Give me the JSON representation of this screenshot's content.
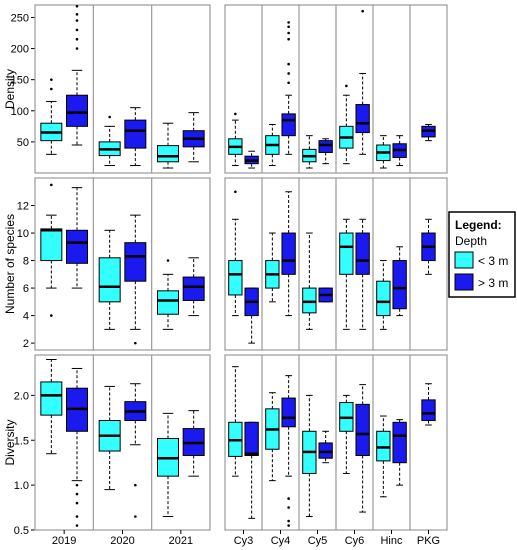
{
  "legend": {
    "title": "Legend:",
    "subtitle": "Depth",
    "items": [
      "< 3 m",
      "> 3 m"
    ]
  },
  "colors": {
    "shallow": "#33ffff",
    "deep": "#1a1aee",
    "frame": "#999999",
    "grid": "#bfbfbf"
  },
  "chart_data": [
    {
      "type": "box",
      "ylabel": "Density",
      "ylim": [
        0,
        270
      ],
      "yticks": [
        50,
        100,
        150,
        200,
        250
      ],
      "left": {
        "groups": [
          "2019",
          "2020",
          "2021"
        ],
        "boxes": [
          {
            "group": "2019",
            "depth": "< 3 m",
            "q1": 52,
            "median": 65,
            "q3": 80,
            "whisker_low": 30,
            "whisker_high": 115,
            "outliers": [
              135,
              150
            ]
          },
          {
            "group": "2019",
            "depth": "> 3 m",
            "q1": 75,
            "median": 97,
            "q3": 125,
            "whisker_low": 45,
            "whisker_high": 165,
            "outliers": [
              200,
              215,
              230,
              245,
              255,
              268
            ]
          },
          {
            "group": "2020",
            "depth": "< 3 m",
            "q1": 28,
            "median": 38,
            "q3": 50,
            "whisker_low": 12,
            "whisker_high": 75,
            "outliers": [
              90
            ]
          },
          {
            "group": "2020",
            "depth": "> 3 m",
            "q1": 40,
            "median": 68,
            "q3": 85,
            "whisker_low": 12,
            "whisker_high": 105,
            "outliers": []
          },
          {
            "group": "2021",
            "depth": "< 3 m",
            "q1": 18,
            "median": 27,
            "q3": 44,
            "whisker_low": 8,
            "whisker_high": 80,
            "outliers": []
          },
          {
            "group": "2021",
            "depth": "> 3 m",
            "q1": 42,
            "median": 55,
            "q3": 68,
            "whisker_low": 18,
            "whisker_high": 97,
            "outliers": []
          }
        ]
      },
      "right": {
        "groups": [
          "Cy3",
          "Cy4",
          "Cy5",
          "Cy6",
          "Hinc",
          "PKG"
        ],
        "boxes": [
          {
            "group": "Cy3",
            "depth": "< 3 m",
            "q1": 30,
            "median": 42,
            "q3": 55,
            "whisker_low": 12,
            "whisker_high": 85,
            "outliers": [
              95
            ]
          },
          {
            "group": "Cy3",
            "depth": "> 3 m",
            "q1": 15,
            "median": 20,
            "q3": 27,
            "whisker_low": 8,
            "whisker_high": 35,
            "outliers": []
          },
          {
            "group": "Cy4",
            "depth": "< 3 m",
            "q1": 30,
            "median": 45,
            "q3": 60,
            "whisker_low": 12,
            "whisker_high": 78,
            "outliers": []
          },
          {
            "group": "Cy4",
            "depth": "> 3 m",
            "q1": 60,
            "median": 85,
            "q3": 95,
            "whisker_low": 30,
            "whisker_high": 125,
            "outliers": [
              145,
              160,
              175,
              215,
              225,
              235,
              242
            ]
          },
          {
            "group": "Cy5",
            "depth": "< 3 m",
            "q1": 18,
            "median": 27,
            "q3": 38,
            "whisker_low": 8,
            "whisker_high": 60,
            "outliers": []
          },
          {
            "group": "Cy5",
            "depth": "> 3 m",
            "q1": 33,
            "median": 45,
            "q3": 52,
            "whisker_low": 15,
            "whisker_high": 55,
            "outliers": []
          },
          {
            "group": "Cy6",
            "depth": "< 3 m",
            "q1": 40,
            "median": 57,
            "q3": 75,
            "whisker_low": 15,
            "whisker_high": 125,
            "outliers": [
              140
            ]
          },
          {
            "group": "Cy6",
            "depth": "> 3 m",
            "q1": 65,
            "median": 80,
            "q3": 110,
            "whisker_low": 30,
            "whisker_high": 160,
            "outliers": [
              260
            ]
          },
          {
            "group": "Hinc",
            "depth": "< 3 m",
            "q1": 20,
            "median": 33,
            "q3": 45,
            "whisker_low": 8,
            "whisker_high": 60,
            "outliers": []
          },
          {
            "group": "Hinc",
            "depth": "> 3 m",
            "q1": 25,
            "median": 37,
            "q3": 47,
            "whisker_low": 12,
            "whisker_high": 60,
            "outliers": []
          },
          {
            "group": "PKG",
            "depth": "> 3 m",
            "q1": 58,
            "median": 68,
            "q3": 75,
            "whisker_low": 52,
            "whisker_high": 78,
            "outliers": []
          }
        ]
      }
    },
    {
      "type": "box",
      "ylabel": "Number of species",
      "ylim": [
        1.5,
        14
      ],
      "yticks": [
        2,
        4,
        6,
        8,
        10,
        12
      ],
      "left": {
        "groups": [
          "2019",
          "2020",
          "2021"
        ],
        "boxes": [
          {
            "group": "2019",
            "depth": "< 3 m",
            "q1": 8,
            "median": 10.2,
            "q3": 10.3,
            "whisker_low": 6,
            "whisker_high": 11.3,
            "outliers": [
              4,
              13.5
            ]
          },
          {
            "group": "2019",
            "depth": "> 3 m",
            "q1": 7.8,
            "median": 9.3,
            "q3": 10.2,
            "whisker_low": 6,
            "whisker_high": 13.3,
            "outliers": []
          },
          {
            "group": "2020",
            "depth": "< 3 m",
            "q1": 5,
            "median": 6.1,
            "q3": 8.2,
            "whisker_low": 3,
            "whisker_high": 10.2,
            "outliers": []
          },
          {
            "group": "2020",
            "depth": "> 3 m",
            "q1": 6.5,
            "median": 8.3,
            "q3": 9.3,
            "whisker_low": 3,
            "whisker_high": 11.3,
            "outliers": [
              2
            ]
          },
          {
            "group": "2021",
            "depth": "< 3 m",
            "q1": 4.1,
            "median": 5.1,
            "q3": 5.8,
            "whisker_low": 3,
            "whisker_high": 7,
            "outliers": [
              8
            ]
          },
          {
            "group": "2021",
            "depth": "> 3 m",
            "q1": 5.1,
            "median": 6.1,
            "q3": 6.8,
            "whisker_low": 4,
            "whisker_high": 8.2,
            "outliers": []
          }
        ]
      },
      "right": {
        "groups": [
          "Cy3",
          "Cy4",
          "Cy5",
          "Cy6",
          "Hinc",
          "PKG"
        ],
        "boxes": [
          {
            "group": "Cy3",
            "depth": "< 3 m",
            "q1": 5.5,
            "median": 7,
            "q3": 8,
            "whisker_low": 4,
            "whisker_high": 11,
            "outliers": [
              13
            ]
          },
          {
            "group": "Cy3",
            "depth": "> 3 m",
            "q1": 4,
            "median": 5,
            "q3": 6,
            "whisker_low": 2,
            "whisker_high": 6,
            "outliers": []
          },
          {
            "group": "Cy4",
            "depth": "< 3 m",
            "q1": 6,
            "median": 7,
            "q3": 8,
            "whisker_low": 5,
            "whisker_high": 10,
            "outliers": []
          },
          {
            "group": "Cy4",
            "depth": "> 3 m",
            "q1": 7,
            "median": 8,
            "q3": 10,
            "whisker_low": 4,
            "whisker_high": 13,
            "outliers": []
          },
          {
            "group": "Cy5",
            "depth": "< 3 m",
            "q1": 4.2,
            "median": 5,
            "q3": 6,
            "whisker_low": 3,
            "whisker_high": 10,
            "outliers": []
          },
          {
            "group": "Cy5",
            "depth": "> 3 m",
            "q1": 5,
            "median": 5.5,
            "q3": 6,
            "whisker_low": 5,
            "whisker_high": 6,
            "outliers": []
          },
          {
            "group": "Cy6",
            "depth": "< 3 m",
            "q1": 7,
            "median": 9,
            "q3": 10,
            "whisker_low": 3,
            "whisker_high": 11,
            "outliers": []
          },
          {
            "group": "Cy6",
            "depth": "> 3 m",
            "q1": 7,
            "median": 8,
            "q3": 10,
            "whisker_low": 3,
            "whisker_high": 11,
            "outliers": []
          },
          {
            "group": "Hinc",
            "depth": "< 3 m",
            "q1": 4,
            "median": 5,
            "q3": 6.5,
            "whisker_low": 3,
            "whisker_high": 8,
            "outliers": []
          },
          {
            "group": "Hinc",
            "depth": "> 3 m",
            "q1": 4.5,
            "median": 6,
            "q3": 8,
            "whisker_low": 4,
            "whisker_high": 9,
            "outliers": []
          },
          {
            "group": "PKG",
            "depth": "> 3 m",
            "q1": 8,
            "median": 9,
            "q3": 10,
            "whisker_low": 7,
            "whisker_high": 11,
            "outliers": []
          }
        ]
      }
    },
    {
      "type": "box",
      "ylabel": "Diversity",
      "ylim": [
        0.5,
        2.45
      ],
      "yticks": [
        0.5,
        1.0,
        1.5,
        2.0
      ],
      "left": {
        "groups": [
          "2019",
          "2020",
          "2021"
        ],
        "boxes": [
          {
            "group": "2019",
            "depth": "< 3 m",
            "q1": 1.78,
            "median": 2.0,
            "q3": 2.15,
            "whisker_low": 1.35,
            "whisker_high": 2.4,
            "outliers": []
          },
          {
            "group": "2019",
            "depth": "> 3 m",
            "q1": 1.6,
            "median": 1.85,
            "q3": 2.08,
            "whisker_low": 1.05,
            "whisker_high": 2.3,
            "outliers": [
              1.0,
              0.9,
              0.8,
              0.65,
              0.55
            ]
          },
          {
            "group": "2020",
            "depth": "< 3 m",
            "q1": 1.38,
            "median": 1.55,
            "q3": 1.72,
            "whisker_low": 0.95,
            "whisker_high": 2.1,
            "outliers": []
          },
          {
            "group": "2020",
            "depth": "> 3 m",
            "q1": 1.72,
            "median": 1.82,
            "q3": 1.93,
            "whisker_low": 1.45,
            "whisker_high": 2.13,
            "outliers": [
              1.0,
              0.65
            ]
          },
          {
            "group": "2021",
            "depth": "< 3 m",
            "q1": 1.1,
            "median": 1.3,
            "q3": 1.52,
            "whisker_low": 0.65,
            "whisker_high": 1.8,
            "outliers": []
          },
          {
            "group": "2021",
            "depth": "> 3 m",
            "q1": 1.33,
            "median": 1.47,
            "q3": 1.63,
            "whisker_low": 1.1,
            "whisker_high": 1.83,
            "outliers": []
          }
        ]
      },
      "right": {
        "groups": [
          "Cy3",
          "Cy4",
          "Cy5",
          "Cy6",
          "Hinc",
          "PKG"
        ],
        "boxes": [
          {
            "group": "Cy3",
            "depth": "< 3 m",
            "q1": 1.32,
            "median": 1.5,
            "q3": 1.7,
            "whisker_low": 1.1,
            "whisker_high": 2.32,
            "outliers": []
          },
          {
            "group": "Cy3",
            "depth": "> 3 m",
            "q1": 1.33,
            "median": 1.35,
            "q3": 1.7,
            "whisker_low": 0.63,
            "whisker_high": 1.7,
            "outliers": []
          },
          {
            "group": "Cy4",
            "depth": "< 3 m",
            "q1": 1.4,
            "median": 1.62,
            "q3": 1.85,
            "whisker_low": 1.05,
            "whisker_high": 2.03,
            "outliers": []
          },
          {
            "group": "Cy4",
            "depth": "> 3 m",
            "q1": 1.65,
            "median": 1.75,
            "q3": 1.97,
            "whisker_low": 1.1,
            "whisker_high": 2.22,
            "outliers": [
              0.85,
              0.75,
              0.6,
              0.55
            ]
          },
          {
            "group": "Cy5",
            "depth": "< 3 m",
            "q1": 1.13,
            "median": 1.37,
            "q3": 1.6,
            "whisker_low": 0.65,
            "whisker_high": 2.0,
            "outliers": []
          },
          {
            "group": "Cy5",
            "depth": "> 3 m",
            "q1": 1.3,
            "median": 1.37,
            "q3": 1.47,
            "whisker_low": 1.25,
            "whisker_high": 1.6,
            "outliers": []
          },
          {
            "group": "Cy6",
            "depth": "< 3 m",
            "q1": 1.6,
            "median": 1.75,
            "q3": 1.92,
            "whisker_low": 1.13,
            "whisker_high": 2.0,
            "outliers": []
          },
          {
            "group": "Cy6",
            "depth": "> 3 m",
            "q1": 1.33,
            "median": 1.57,
            "q3": 1.9,
            "whisker_low": 0.7,
            "whisker_high": 2.12,
            "outliers": []
          },
          {
            "group": "Hinc",
            "depth": "< 3 m",
            "q1": 1.27,
            "median": 1.42,
            "q3": 1.6,
            "whisker_low": 0.87,
            "whisker_high": 1.77,
            "outliers": []
          },
          {
            "group": "Hinc",
            "depth": "> 3 m",
            "q1": 1.25,
            "median": 1.55,
            "q3": 1.7,
            "whisker_low": 1.0,
            "whisker_high": 1.73,
            "outliers": []
          },
          {
            "group": "PKG",
            "depth": "> 3 m",
            "q1": 1.72,
            "median": 1.8,
            "q3": 1.95,
            "whisker_low": 1.67,
            "whisker_high": 2.13,
            "outliers": []
          }
        ]
      }
    }
  ]
}
